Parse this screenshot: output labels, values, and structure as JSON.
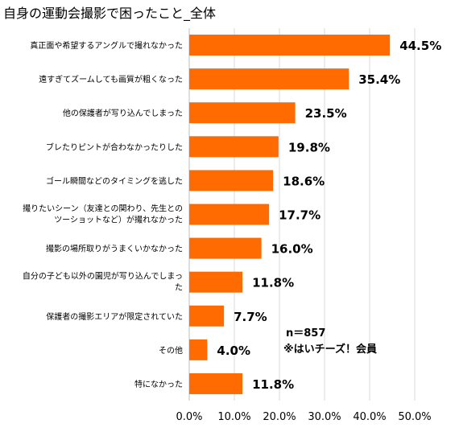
{
  "chart_data": {
    "type": "bar",
    "orientation": "horizontal",
    "title": "自身の運動会撮影で困ったこと_全体",
    "categories": [
      "真正面や希望するアングルで撮れなかった",
      "遠すぎてズームしても画質が粗くなった",
      "他の保護者が写り込んでしまった",
      "ブレたりピントが合わなかったりした",
      "ゴール瞬間などのタイミングを逃した",
      [
        "撮りたいシーン（友達との関わり、先生との",
        "ツーショットなど）が撮れなかった"
      ],
      "撮影の場所取りがうまくいかなかった",
      [
        "自分の子ども以外の園児が写り込んでしまっ",
        "た"
      ],
      "保護者の撮影エリアが限定されていた",
      "その他",
      "特になかった"
    ],
    "values": [
      44.5,
      35.4,
      23.5,
      19.8,
      18.6,
      17.7,
      16.0,
      11.8,
      7.7,
      4.0,
      11.8
    ],
    "value_labels": [
      "44.5%",
      "35.4%",
      "23.5%",
      "19.8%",
      "18.6%",
      "17.7%",
      "16.0%",
      "11.8%",
      "7.7%",
      "4.0%",
      "11.8%"
    ],
    "xlim": [
      0,
      50
    ],
    "x_ticks": [
      "0.0%",
      "10.0%",
      "20.0%",
      "30.0%",
      "40.0%",
      "50.0%"
    ],
    "grid": true,
    "bar_color": "#ff6b00",
    "annotations": [
      "n＝857",
      "※はいチーズ！会員"
    ]
  }
}
